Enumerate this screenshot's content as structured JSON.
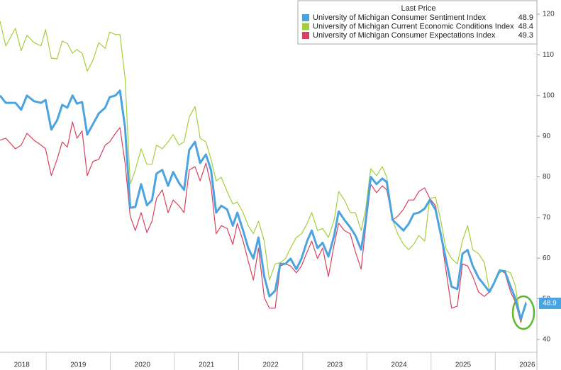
{
  "chart_data": {
    "type": "line",
    "legend_title": "Last Price",
    "legend_position": "top-right",
    "x": [
      2018.28,
      2018.37,
      2018.52,
      2018.61,
      2018.7,
      2018.81,
      2018.92,
      2018.99,
      2019.08,
      2019.17,
      2019.25,
      2019.33,
      2019.41,
      2019.48,
      2019.56,
      2019.64,
      2019.73,
      2019.82,
      2019.92,
      2019.99,
      2020.08,
      2020.15,
      2020.23,
      2020.31,
      2020.39,
      2020.48,
      2020.57,
      2020.65,
      2020.72,
      2020.81,
      2020.9,
      2020.98,
      2021.07,
      2021.15,
      2021.23,
      2021.32,
      2021.4,
      2021.49,
      2021.57,
      2021.65,
      2021.73,
      2021.82,
      2021.91,
      2021.98,
      2022.07,
      2022.15,
      2022.23,
      2022.31,
      2022.4,
      2022.48,
      2022.57,
      2022.65,
      2022.73,
      2022.81,
      2022.9,
      2022.98,
      2023.07,
      2023.14,
      2023.23,
      2023.31,
      2023.4,
      2023.49,
      2023.56,
      2023.65,
      2023.74,
      2023.82,
      2023.91,
      2023.98,
      2024.06,
      2024.15,
      2024.24,
      2024.31,
      2024.4,
      2024.48,
      2024.57,
      2024.65,
      2024.73,
      2024.81,
      2024.9,
      2024.98,
      2025.07,
      2025.15,
      2025.23,
      2025.32,
      2025.41,
      2025.49,
      2025.57,
      2025.65,
      2025.74,
      2025.83,
      2025.91,
      2025.98,
      2026.07,
      2026.15,
      2026.24,
      2026.31,
      2026.4,
      2026.48
    ],
    "series": [
      {
        "name": "University of Michigan Consumer Sentiment Index",
        "color": "#4ba3e0",
        "width": 3,
        "values": [
          100,
          98.2,
          98.2,
          96.5,
          100,
          98.6,
          98.2,
          98.9,
          91.6,
          93.9,
          97.7,
          97,
          100,
          98,
          98.4,
          90.4,
          93,
          95.6,
          97,
          99.6,
          100,
          101.2,
          92.1,
          72.4,
          72.6,
          78.2,
          73,
          74.3,
          80.8,
          81.7,
          77.8,
          81.2,
          78.5,
          76.8,
          86.6,
          88.6,
          83.4,
          85.5,
          81.7,
          71.2,
          72.9,
          72,
          68,
          71.2,
          66.8,
          62.5,
          59.9,
          65.1,
          55.5,
          50.6,
          52,
          58.6,
          58.6,
          59.9,
          57.3,
          59.9,
          64.3,
          66.8,
          62.5,
          63.8,
          60.4,
          65.6,
          71.5,
          69.4,
          67.6,
          65.6,
          62.1,
          69,
          80,
          78.2,
          79.6,
          78.7,
          69.4,
          68.2,
          66.8,
          68.4,
          70.9,
          71.2,
          72.2,
          74.3,
          71.9,
          66,
          59.9,
          53,
          52.4,
          61.1,
          62,
          58.1,
          55.2,
          53.4,
          51.7,
          53.8,
          57,
          56.8,
          53,
          50.3,
          45,
          48.9
        ]
      },
      {
        "name": "University of Michigan Current Economic Conditions Index",
        "color": "#a3cf3c",
        "width": 1.2,
        "values": [
          118.3,
          112.2,
          116.5,
          111,
          114.8,
          113,
          112.2,
          116.2,
          109.2,
          109,
          113.4,
          112.8,
          110.4,
          111.3,
          110.4,
          106,
          108.7,
          113,
          111.6,
          115.6,
          115,
          115,
          104.3,
          78.2,
          81.7,
          86.9,
          83.1,
          83.1,
          87.8,
          86.9,
          88.6,
          90.4,
          87.8,
          88.6,
          94.7,
          97.3,
          89.5,
          88.6,
          84.3,
          79,
          79.9,
          76.4,
          73.3,
          73.8,
          71.2,
          68,
          66,
          69.1,
          64.2,
          54.6,
          58.6,
          58.9,
          59.9,
          62.5,
          65.1,
          66,
          68.6,
          71.2,
          66.8,
          67.3,
          65.1,
          69.4,
          76.4,
          74.3,
          71.2,
          71.2,
          66.8,
          72,
          82,
          80.3,
          82.5,
          79.9,
          69.4,
          66,
          63.4,
          62.1,
          63.4,
          65.6,
          64.2,
          74.7,
          75,
          69.4,
          62.5,
          59.9,
          58.6,
          64.3,
          68,
          62.1,
          61.1,
          59,
          52,
          54.1,
          56.4,
          57,
          56.4,
          53.4,
          44.7,
          48.4
        ]
      },
      {
        "name": "University of Michigan Consumer Expectations Index",
        "color": "#d8415d",
        "width": 1.2,
        "values": [
          89,
          89.5,
          86.9,
          87.8,
          90.7,
          89,
          87.8,
          86.9,
          80.3,
          84.3,
          88.6,
          87.3,
          93.5,
          89.5,
          91.3,
          80.3,
          83.8,
          84.3,
          87.8,
          88.6,
          90.7,
          92.1,
          83.4,
          70.3,
          66.8,
          71.2,
          66.3,
          69.1,
          74.7,
          76.8,
          71.2,
          74.3,
          72.9,
          71.2,
          81.7,
          82.5,
          79,
          83.4,
          77.8,
          66,
          68,
          67.3,
          63.4,
          68.6,
          64.2,
          59.3,
          54.6,
          62.5,
          50.3,
          47.7,
          47.7,
          58.1,
          58.6,
          58.1,
          56.4,
          58.1,
          61.6,
          64.2,
          59.9,
          62.5,
          55.5,
          63.4,
          68.6,
          66.8,
          66,
          61.6,
          57.3,
          67.6,
          78.2,
          76.1,
          77.8,
          76.8,
          69.4,
          70.3,
          72,
          74.3,
          74.3,
          76.4,
          77.3,
          74.7,
          72.9,
          66,
          57.3,
          47.7,
          48.2,
          58.6,
          58.1,
          55.5,
          51.7,
          50.6,
          51.7,
          53.8,
          57,
          56.4,
          51.7,
          49.4,
          44.2,
          49.3
        ]
      }
    ],
    "xlim": [
      2018.28,
      2026.65
    ],
    "xticks": [
      {
        "value": 2018.62,
        "label": "2018"
      },
      {
        "value": 2019.5,
        "label": "2019"
      },
      {
        "value": 2020.5,
        "label": "2020"
      },
      {
        "value": 2021.5,
        "label": "2021"
      },
      {
        "value": 2022.5,
        "label": "2022"
      },
      {
        "value": 2023.5,
        "label": "2023"
      },
      {
        "value": 2024.5,
        "label": "2024"
      },
      {
        "value": 2025.5,
        "label": "2025"
      },
      {
        "value": 2026.5,
        "label": "2026"
      }
    ],
    "ylim": [
      40,
      120
    ],
    "yticks": [
      40,
      50,
      60,
      70,
      80,
      90,
      100,
      110,
      120
    ],
    "y_axis_side": "right",
    "grid": false
  }
}
